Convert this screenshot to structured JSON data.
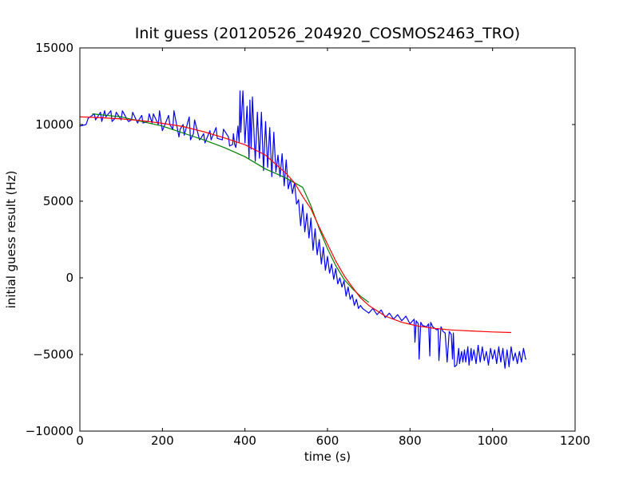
{
  "chart_data": {
    "type": "line",
    "title": "Init guess (20120526_204920_COSMOS2463_TRO)",
    "xlabel": "time (s)",
    "ylabel": "initial guess result (Hz)",
    "xlim": [
      0,
      1200
    ],
    "ylim": [
      -10000,
      15000
    ],
    "xticks": [
      0,
      200,
      400,
      600,
      800,
      1000,
      1200
    ],
    "yticks": [
      -10000,
      -5000,
      0,
      5000,
      10000,
      15000
    ],
    "xtick_labels": [
      "0",
      "200",
      "400",
      "600",
      "800",
      "1000",
      "1200"
    ],
    "ytick_labels": [
      "−10000",
      "−5000",
      "0",
      "5000",
      "10000",
      "15000"
    ],
    "grid": false,
    "legend": "none",
    "series": [
      {
        "color": "#0000ff",
        "x": [
          0,
          15,
          20,
          35,
          38,
          50,
          53,
          60,
          63,
          75,
          78,
          85,
          88,
          100,
          103,
          115,
          118,
          125,
          128,
          140,
          143,
          150,
          153,
          165,
          168,
          175,
          178,
          190,
          193,
          200,
          203,
          215,
          218,
          225,
          228,
          240,
          243,
          250,
          253,
          265,
          268,
          275,
          278,
          290,
          293,
          300,
          303,
          315,
          318,
          330,
          333,
          345,
          348,
          360,
          363,
          370,
          372,
          375,
          378,
          383,
          386,
          388,
          390,
          395,
          400,
          405,
          410,
          412,
          415,
          418,
          425,
          430,
          435,
          440,
          445,
          450,
          455,
          460,
          465,
          470,
          475,
          480,
          485,
          490,
          495,
          500,
          505,
          510,
          515,
          520,
          525,
          530,
          535,
          540,
          545,
          550,
          555,
          560,
          565,
          570,
          575,
          580,
          585,
          590,
          595,
          600,
          605,
          610,
          615,
          620,
          625,
          630,
          635,
          640,
          645,
          650,
          655,
          660,
          665,
          670,
          675,
          680,
          685,
          690,
          695,
          700,
          710,
          720,
          730,
          740,
          750,
          760,
          770,
          780,
          790,
          800,
          810,
          812,
          815,
          820,
          822,
          826,
          830,
          840,
          845,
          848,
          850,
          855,
          865,
          868,
          870,
          875,
          880,
          885,
          890,
          895,
          900,
          903,
          905,
          908,
          913,
          918,
          920,
          925,
          928,
          932,
          935,
          940,
          943,
          948,
          950,
          955,
          960,
          965,
          970,
          975,
          980,
          985,
          990,
          995,
          1000,
          1005,
          1010,
          1015,
          1020,
          1025,
          1030,
          1035,
          1040,
          1045,
          1050,
          1055,
          1060,
          1065,
          1070,
          1075,
          1080,
          1082
        ],
        "y": [
          9900,
          10000,
          10400,
          10700,
          10300,
          10800,
          10200,
          10900,
          10500,
          10900,
          10200,
          10400,
          10800,
          10300,
          10900,
          10300,
          10200,
          10300,
          10800,
          10100,
          10300,
          10600,
          10100,
          10200,
          10700,
          10100,
          10700,
          10000,
          10900,
          9600,
          9800,
          10600,
          10000,
          9700,
          10900,
          9200,
          9700,
          10000,
          9300,
          10500,
          9000,
          9400,
          10300,
          9000,
          9100,
          9400,
          8800,
          9600,
          9000,
          9800,
          9100,
          9000,
          9700,
          9200,
          8600,
          8700,
          9400,
          8700,
          8500,
          9900,
          8800,
          12200,
          9500,
          12200,
          8800,
          11200,
          7800,
          11600,
          8400,
          11800,
          7600,
          10800,
          7800,
          10800,
          7000,
          10200,
          7200,
          9800,
          6600,
          9500,
          6900,
          8000,
          6600,
          8100,
          6000,
          7700,
          5800,
          6400,
          5500,
          6200,
          4800,
          5100,
          3400,
          4800,
          3000,
          4200,
          2600,
          3900,
          1800,
          3200,
          1500,
          2500,
          900,
          2000,
          500,
          1400,
          300,
          900,
          -100,
          600,
          -400,
          0,
          -600,
          -200,
          -1200,
          -600,
          -1400,
          -1100,
          -1800,
          -1400,
          -2000,
          -1800,
          -2000,
          -2100,
          -2200,
          -2300,
          -2000,
          -2400,
          -2100,
          -2600,
          -2300,
          -2700,
          -2400,
          -2800,
          -2500,
          -3000,
          -2700,
          -4200,
          -2800,
          -3000,
          -5300,
          -2900,
          -3100,
          -3200,
          -3000,
          -5100,
          -2900,
          -3200,
          -3400,
          -3300,
          -5400,
          -3200,
          -3500,
          -3600,
          -5500,
          -3500,
          -3700,
          -5300,
          -3600,
          -5800,
          -5700,
          -4600,
          -5600,
          -4800,
          -5500,
          -4700,
          -5500,
          -4500,
          -5700,
          -4600,
          -5400,
          -4700,
          -5600,
          -4400,
          -5500,
          -4500,
          -5400,
          -4800,
          -5700,
          -4600,
          -5300,
          -4700,
          -5600,
          -4500,
          -5500,
          -4600,
          -5900,
          -4700,
          -5800,
          -4500,
          -5400,
          -4900,
          -5600,
          -4800,
          -5500,
          -4600,
          -5300,
          -5300
        ]
      },
      {
        "color": "#008000",
        "x": [
          30,
          100,
          200,
          300,
          350,
          400,
          450,
          500,
          540,
          560,
          580,
          600,
          620,
          640,
          660,
          680,
          700
        ],
        "y": [
          10700,
          10500,
          9900,
          9000,
          8500,
          7900,
          7100,
          6500,
          5900,
          4700,
          3200,
          1900,
          800,
          -100,
          -700,
          -1200,
          -1600
        ]
      },
      {
        "color": "#ff0000",
        "x": [
          0,
          50,
          100,
          150,
          200,
          250,
          300,
          350,
          400,
          450,
          500,
          520,
          540,
          560,
          580,
          600,
          620,
          640,
          660,
          680,
          700,
          740,
          780,
          820,
          860,
          900,
          950,
          1000,
          1045
        ],
        "y": [
          10500,
          10450,
          10370,
          10250,
          10080,
          9870,
          9530,
          9130,
          8680,
          8000,
          6800,
          6200,
          5300,
          4500,
          3300,
          2200,
          1100,
          150,
          -600,
          -1300,
          -1800,
          -2500,
          -2900,
          -3150,
          -3300,
          -3400,
          -3470,
          -3530,
          -3570
        ]
      }
    ]
  }
}
